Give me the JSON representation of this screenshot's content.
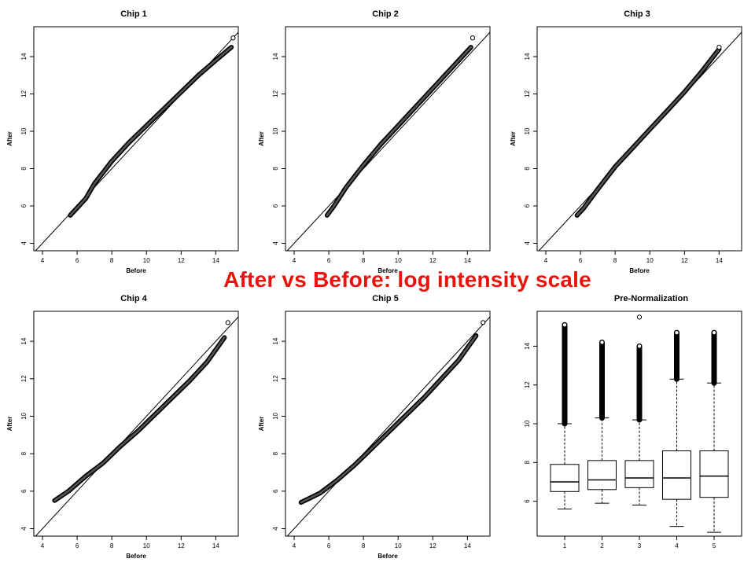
{
  "overlay_title": "After vs Before: log intensity scale",
  "colors": {
    "overlay_title": "#e8140c",
    "points": "#000000",
    "diagonal": "#000000"
  },
  "chart_data": [
    {
      "type": "scatter",
      "title": "Chip 1",
      "xlabel": "Before",
      "ylabel": "After",
      "xlim": [
        3.5,
        15.3
      ],
      "ylim": [
        3.6,
        15.6
      ],
      "xticks": [
        "4",
        "6",
        "8",
        "10",
        "12",
        "14"
      ],
      "yticks": [
        "4",
        "6",
        "8",
        "10",
        "12",
        "14"
      ],
      "reference_line": "y = x",
      "curve": {
        "x": [
          5.6,
          6.0,
          6.5,
          7.0,
          8.0,
          9.0,
          10.0,
          11.0,
          12.0,
          13.0,
          14.0,
          14.9
        ],
        "y": [
          5.5,
          5.9,
          6.4,
          7.2,
          8.4,
          9.4,
          10.3,
          11.2,
          12.1,
          13.0,
          13.8,
          14.5
        ]
      },
      "outliers": [
        {
          "x": 15.0,
          "y": 15.0
        }
      ]
    },
    {
      "type": "scatter",
      "title": "Chip 2",
      "xlabel": "Before",
      "ylabel": "After",
      "xlim": [
        3.5,
        15.3
      ],
      "ylim": [
        3.6,
        15.6
      ],
      "xticks": [
        "4",
        "6",
        "8",
        "10",
        "12",
        "14"
      ],
      "yticks": [
        "4",
        "6",
        "8",
        "10",
        "12",
        "14"
      ],
      "reference_line": "y = x",
      "curve": {
        "x": [
          5.9,
          6.3,
          7.0,
          8.0,
          9.0,
          10.0,
          11.0,
          12.0,
          13.0,
          14.2
        ],
        "y": [
          5.5,
          6.0,
          7.0,
          8.2,
          9.3,
          10.3,
          11.3,
          12.3,
          13.3,
          14.5
        ]
      },
      "outliers": [
        {
          "x": 14.3,
          "y": 15.0
        }
      ]
    },
    {
      "type": "scatter",
      "title": "Chip 3",
      "xlabel": "Before",
      "ylabel": "After",
      "xlim": [
        3.5,
        15.3
      ],
      "ylim": [
        3.6,
        15.6
      ],
      "xticks": [
        "4",
        "6",
        "8",
        "10",
        "12",
        "14"
      ],
      "yticks": [
        "4",
        "6",
        "8",
        "10",
        "12",
        "14"
      ],
      "reference_line": "y = x",
      "curve": {
        "x": [
          5.8,
          6.2,
          7.0,
          8.0,
          9.0,
          10.0,
          11.0,
          12.0,
          13.0,
          14.0
        ],
        "y": [
          5.5,
          5.9,
          6.9,
          8.1,
          9.1,
          10.1,
          11.1,
          12.1,
          13.2,
          14.4
        ]
      },
      "outliers": [
        {
          "x": 14.0,
          "y": 14.5
        }
      ]
    },
    {
      "type": "scatter",
      "title": "Chip 4",
      "xlabel": "Before",
      "ylabel": "After",
      "xlim": [
        3.5,
        15.3
      ],
      "ylim": [
        3.6,
        15.6
      ],
      "xticks": [
        "4",
        "6",
        "8",
        "10",
        "12",
        "14"
      ],
      "yticks": [
        "4",
        "6",
        "8",
        "10",
        "12",
        "14"
      ],
      "reference_line": "y = x",
      "curve": {
        "x": [
          4.7,
          5.5,
          6.5,
          7.5,
          8.5,
          9.5,
          10.5,
          11.5,
          12.5,
          13.5,
          14.5
        ],
        "y": [
          5.5,
          6.0,
          6.8,
          7.5,
          8.4,
          9.2,
          10.1,
          11.0,
          11.9,
          12.9,
          14.2
        ]
      },
      "outliers": [
        {
          "x": 14.7,
          "y": 15.0
        }
      ]
    },
    {
      "type": "scatter",
      "title": "Chip 5",
      "xlabel": "Before",
      "ylabel": "After",
      "xlim": [
        3.5,
        15.3
      ],
      "ylim": [
        3.6,
        15.6
      ],
      "xticks": [
        "4",
        "6",
        "8",
        "10",
        "12",
        "14"
      ],
      "yticks": [
        "4",
        "6",
        "8",
        "10",
        "12",
        "14"
      ],
      "reference_line": "y = x",
      "curve": {
        "x": [
          4.4,
          5.5,
          6.5,
          7.5,
          8.5,
          9.5,
          10.5,
          11.5,
          12.5,
          13.5,
          14.5
        ],
        "y": [
          5.4,
          5.9,
          6.6,
          7.4,
          8.3,
          9.2,
          10.1,
          11.0,
          12.0,
          13.0,
          14.3
        ]
      },
      "outliers": [
        {
          "x": 14.9,
          "y": 15.0
        }
      ]
    },
    {
      "type": "box",
      "title": "Pre-Normalization",
      "categories": [
        "1",
        "2",
        "3",
        "4",
        "5"
      ],
      "ylim": [
        4.2,
        15.8
      ],
      "yticks": [
        "6",
        "8",
        "10",
        "12",
        "14"
      ],
      "boxes": [
        {
          "min": 5.6,
          "q1": 6.5,
          "median": 7.0,
          "q3": 7.9,
          "whisker_high": 10.0,
          "outlier_max": 15.1
        },
        {
          "min": 5.9,
          "q1": 6.6,
          "median": 7.1,
          "q3": 8.1,
          "whisker_high": 10.3,
          "outlier_max": 14.2
        },
        {
          "min": 5.8,
          "q1": 6.7,
          "median": 7.2,
          "q3": 8.1,
          "whisker_high": 10.2,
          "outlier_max": 14.0,
          "extra_outlier": 15.5
        },
        {
          "min": 4.7,
          "q1": 6.1,
          "median": 7.2,
          "q3": 8.6,
          "whisker_high": 12.3,
          "outlier_max": 14.7
        },
        {
          "min": 4.4,
          "q1": 6.2,
          "median": 7.3,
          "q3": 8.6,
          "whisker_high": 12.1,
          "outlier_max": 14.7
        }
      ]
    }
  ]
}
